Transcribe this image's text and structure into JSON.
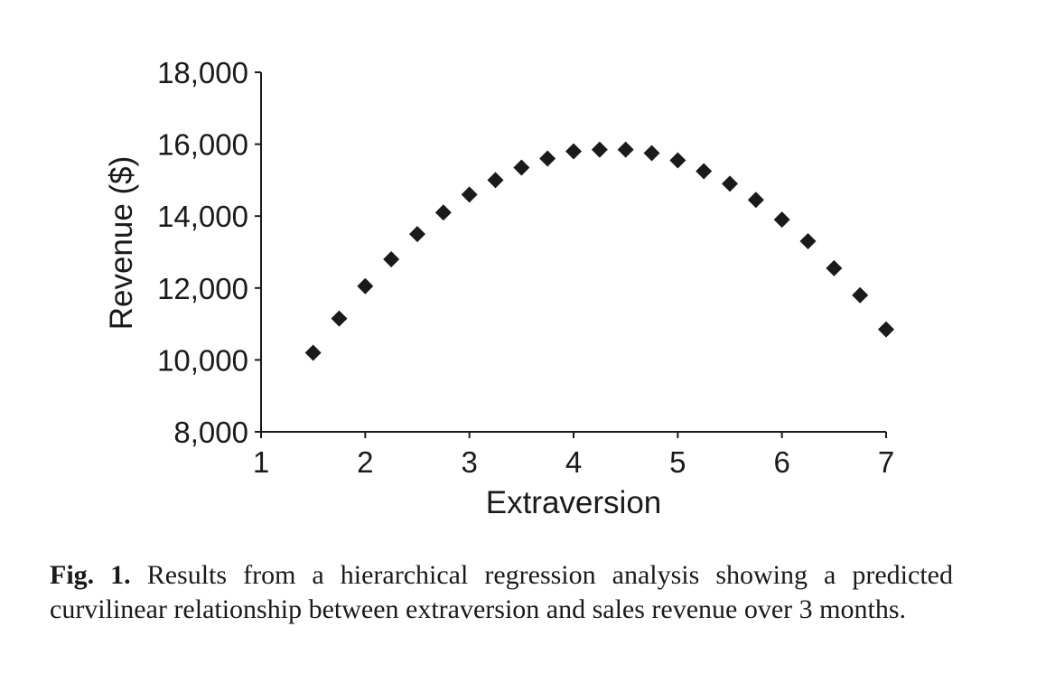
{
  "chart_data": {
    "type": "scatter",
    "title": "",
    "xlabel": "Extraversion",
    "ylabel": "Revenue ($)",
    "xlim": [
      1,
      7
    ],
    "ylim": [
      8000,
      18000
    ],
    "x_ticks": [
      "1",
      "2",
      "3",
      "4",
      "5",
      "6",
      "7"
    ],
    "y_ticks": [
      "8,000",
      "10,000",
      "12,000",
      "14,000",
      "16,000",
      "18,000"
    ],
    "grid": false,
    "marker": "diamond",
    "color": "#1a1a1a",
    "series": [
      {
        "x": [
          1.5,
          1.75,
          2.0,
          2.25,
          2.5,
          2.75,
          3.0,
          3.25,
          3.5,
          3.75,
          4.0,
          4.25,
          4.5,
          4.75,
          5.0,
          5.25,
          5.5,
          5.75,
          6.0,
          6.25,
          6.5,
          6.75,
          7.0
        ],
        "y": [
          10200,
          11150,
          12050,
          12800,
          13500,
          14100,
          14600,
          15000,
          15350,
          15600,
          15800,
          15850,
          15850,
          15750,
          15550,
          15250,
          14900,
          14450,
          13900,
          13300,
          12550,
          11800,
          10850
        ]
      }
    ]
  },
  "caption": {
    "label": "Fig. 1.",
    "text": "Results from a hierarchical regression analysis showing a predicted curvilinear relationship between extraversion and sales revenue over 3 months."
  }
}
